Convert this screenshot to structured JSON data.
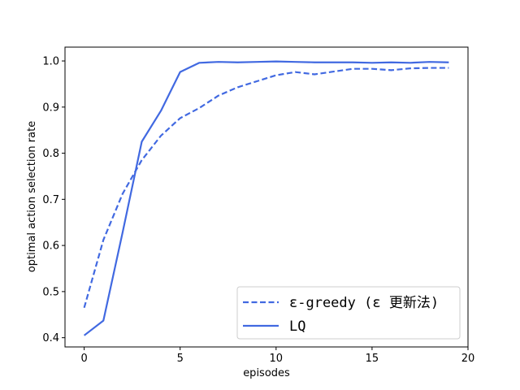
{
  "chart_data": {
    "type": "line",
    "xlabel": "episodes",
    "ylabel": "optimal action selection rate",
    "xlim": [
      -1,
      20
    ],
    "ylim": [
      0.38,
      1.03
    ],
    "xticks": [
      0,
      5,
      10,
      15,
      20
    ],
    "xtick_labels": [
      "0",
      "5",
      "10",
      "15",
      "20"
    ],
    "yticks": [
      0.4,
      0.5,
      0.6,
      0.7,
      0.8,
      0.9,
      1.0
    ],
    "ytick_labels": [
      "0.4",
      "0.5",
      "0.6",
      "0.7",
      "0.8",
      "0.9",
      "1.0"
    ],
    "grid": false,
    "legend_position": "lower right",
    "series": [
      {
        "name": "ε-greedy (ε 更新法)",
        "style": "dashed",
        "color": "#4169e1",
        "x": [
          0,
          1,
          2,
          3,
          4,
          5,
          6,
          7,
          8,
          9,
          10,
          11,
          12,
          13,
          14,
          15,
          16,
          17,
          18,
          19
        ],
        "values": [
          0.465,
          0.612,
          0.712,
          0.785,
          0.838,
          0.876,
          0.898,
          0.925,
          0.943,
          0.956,
          0.969,
          0.976,
          0.971,
          0.977,
          0.983,
          0.983,
          0.98,
          0.984,
          0.985,
          0.985
        ]
      },
      {
        "name": "LQ",
        "style": "solid",
        "color": "#4169e1",
        "x": [
          0,
          1,
          2,
          3,
          4,
          5,
          6,
          7,
          8,
          9,
          10,
          11,
          12,
          13,
          14,
          15,
          16,
          17,
          18,
          19
        ],
        "values": [
          0.405,
          0.437,
          0.628,
          0.825,
          0.892,
          0.976,
          0.996,
          0.998,
          0.997,
          0.998,
          0.999,
          0.998,
          0.997,
          0.997,
          0.997,
          0.996,
          0.997,
          0.996,
          0.998,
          0.997
        ]
      }
    ]
  }
}
